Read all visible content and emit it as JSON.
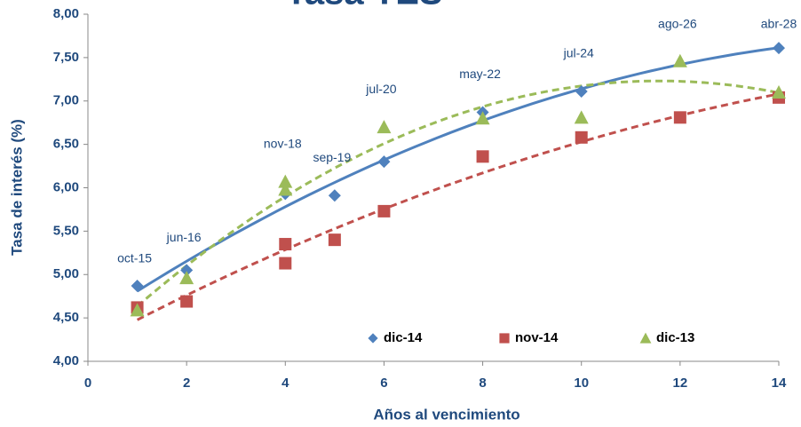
{
  "chart_data": {
    "type": "scatter",
    "title": "Tasa TES",
    "x_label": "Años al vencimiento",
    "y_label": "Tasa de interés (%)",
    "xlim": [
      0,
      14
    ],
    "xticks": [
      0,
      2,
      4,
      6,
      8,
      10,
      12,
      14
    ],
    "ylim": [
      4,
      8
    ],
    "yticks": [
      {
        "value": 4,
        "label": "4,00"
      },
      {
        "value": 4.5,
        "label": "4,50"
      },
      {
        "value": 5,
        "label": "5,00"
      },
      {
        "value": 5.5,
        "label": "5,50"
      },
      {
        "value": 6,
        "label": "6,00"
      },
      {
        "value": 6.5,
        "label": "6,50"
      },
      {
        "value": 7,
        "label": "7,00"
      },
      {
        "value": 7.5,
        "label": "7,50"
      },
      {
        "value": 8,
        "label": "8,00"
      }
    ],
    "grid": false,
    "legend": "bottom",
    "series": [
      {
        "name": "dic-14",
        "color": "#4f81bd",
        "marker": "diamond",
        "trendline_dashed": false,
        "x": [
          1,
          2,
          4,
          5,
          6,
          8,
          10,
          14
        ],
        "values": [
          4.87,
          5.05,
          5.93,
          5.91,
          6.3,
          6.87,
          7.11,
          7.61
        ]
      },
      {
        "name": "nov-14",
        "color": "#c0504d",
        "marker": "square",
        "trendline_dashed": true,
        "x": [
          1,
          2,
          4,
          4,
          5,
          6,
          8,
          10,
          12,
          14
        ],
        "values": [
          4.62,
          4.69,
          5.35,
          5.13,
          5.4,
          5.73,
          6.36,
          6.58,
          6.81,
          7.04
        ]
      },
      {
        "name": "dic-13",
        "color": "#9bbb59",
        "marker": "triangle",
        "trendline_dashed": true,
        "x": [
          1,
          2,
          4,
          4,
          6,
          8,
          10,
          12,
          14
        ],
        "values": [
          4.59,
          4.96,
          6.07,
          5.98,
          6.7,
          6.8,
          6.81,
          7.46,
          7.1
        ]
      }
    ],
    "annotations": [
      {
        "text": "oct-15",
        "x": 1
      },
      {
        "text": "jun-16",
        "x": 2
      },
      {
        "text": "nov-18",
        "x": 4
      },
      {
        "text": "sep-19",
        "x": 5
      },
      {
        "text": "jul-20",
        "x": 6
      },
      {
        "text": "may-22",
        "x": 8
      },
      {
        "text": "jul-24",
        "x": 10
      },
      {
        "text": "ago-26",
        "x": 12
      },
      {
        "text": "abr-28",
        "x": 14
      }
    ]
  }
}
